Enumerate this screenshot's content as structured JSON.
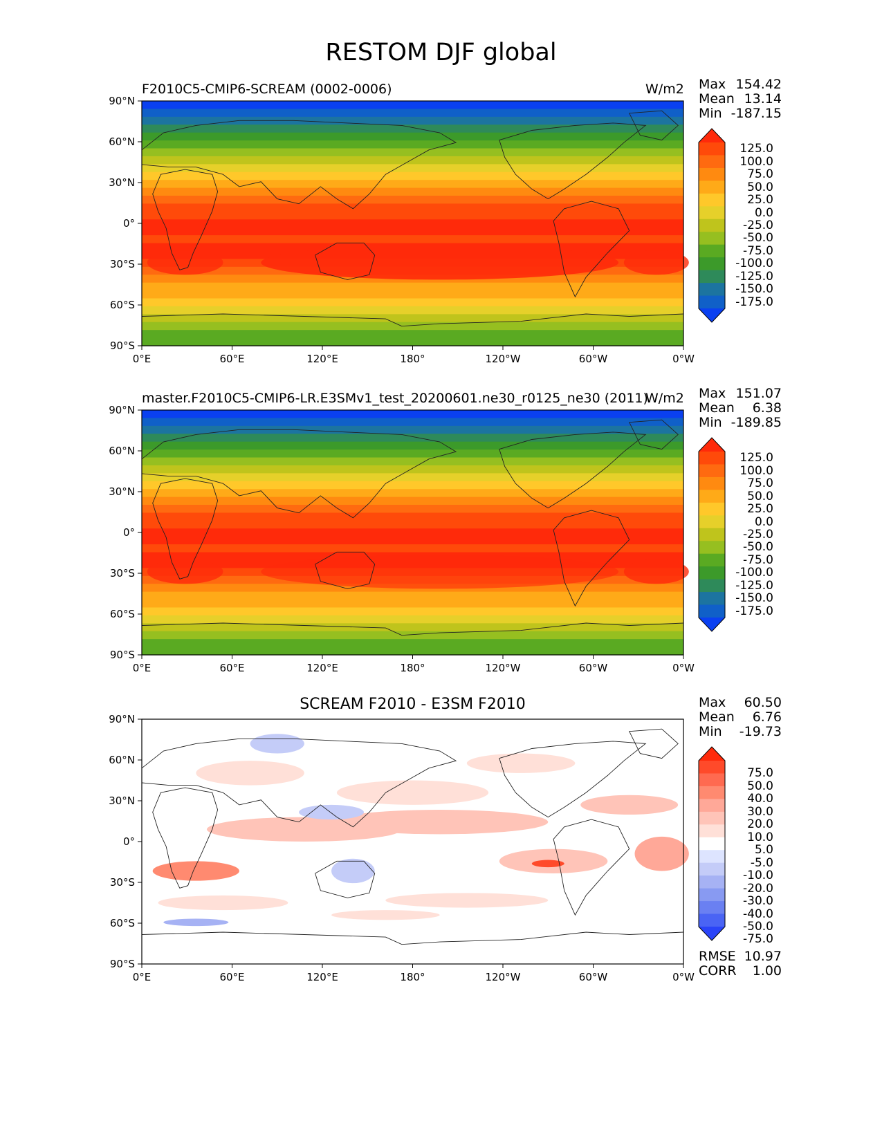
{
  "figure_title": "RESTOM DJF global",
  "longitude_ticks": [
    "0°E",
    "60°E",
    "120°E",
    "180°",
    "120°W",
    "60°W",
    "0°W"
  ],
  "latitude_ticks": [
    "90°N",
    "60°N",
    "30°N",
    "0°",
    "30°S",
    "60°S",
    "90°S"
  ],
  "panels": [
    {
      "title": "F2010C5-CMIP6-SCREAM (0002-0006)",
      "units": "W/m2",
      "stats": {
        "max_label": "Max",
        "max": "154.42",
        "mean_label": "Mean",
        "mean": "13.14",
        "min_label": "Min",
        "min": "-187.15"
      },
      "colorbar": {
        "ticks": [
          "125.0",
          "100.0",
          "75.0",
          "50.0",
          "25.0",
          "0.0",
          "-25.0",
          "-50.0",
          "-75.0",
          "-100.0",
          "-125.0",
          "-150.0",
          "-175.0"
        ],
        "colors": [
          "#ff2a0a",
          "#ff4a0a",
          "#ff6a10",
          "#ff8a10",
          "#ffaa18",
          "#ffc82a",
          "#e6d02a",
          "#bfc41c",
          "#96bf20",
          "#5aaa22",
          "#3c9a2a",
          "#2e8a5a",
          "#1c74a0",
          "#1060c8",
          "#0a40f0"
        ]
      }
    },
    {
      "title": "master.F2010C5-CMIP6-LR.E3SMv1_test_20200601.ne30_r0125_ne30 (2011)",
      "units": "W/m2",
      "stats": {
        "max_label": "Max",
        "max": "151.07",
        "mean_label": "Mean",
        "mean": "6.38",
        "min_label": "Min",
        "min": "-189.85"
      },
      "colorbar": {
        "ticks": [
          "125.0",
          "100.0",
          "75.0",
          "50.0",
          "25.0",
          "0.0",
          "-25.0",
          "-50.0",
          "-75.0",
          "-100.0",
          "-125.0",
          "-150.0",
          "-175.0"
        ],
        "colors": [
          "#ff2a0a",
          "#ff4a0a",
          "#ff6a10",
          "#ff8a10",
          "#ffaa18",
          "#ffc82a",
          "#e6d02a",
          "#bfc41c",
          "#96bf20",
          "#5aaa22",
          "#3c9a2a",
          "#2e8a5a",
          "#1c74a0",
          "#1060c8",
          "#0a40f0"
        ]
      }
    },
    {
      "title": "SCREAM F2010 - E3SM F2010",
      "units": "",
      "stats": {
        "max_label": "Max",
        "max": "60.50",
        "mean_label": "Mean",
        "mean": "6.76",
        "min_label": "Min",
        "min": "-19.73"
      },
      "colorbar": {
        "ticks": [
          "75.0",
          "50.0",
          "40.0",
          "30.0",
          "20.0",
          "10.0",
          "5.0",
          "-5.0",
          "-10.0",
          "-20.0",
          "-30.0",
          "-40.0",
          "-50.0",
          "-75.0"
        ],
        "colors": [
          "#ff2a0a",
          "#ff4a2a",
          "#ff6a50",
          "#ff8a70",
          "#ffa898",
          "#ffc4b8",
          "#ffe0d8",
          "#ffffff",
          "#dde4ff",
          "#c4ccf8",
          "#a6b2f4",
          "#889af2",
          "#6a80f2",
          "#4a64f4",
          "#2a44f8"
        ]
      },
      "rmse_label": "RMSE",
      "rmse": "10.97",
      "corr_label": "CORR",
      "corr": "1.00"
    }
  ]
}
